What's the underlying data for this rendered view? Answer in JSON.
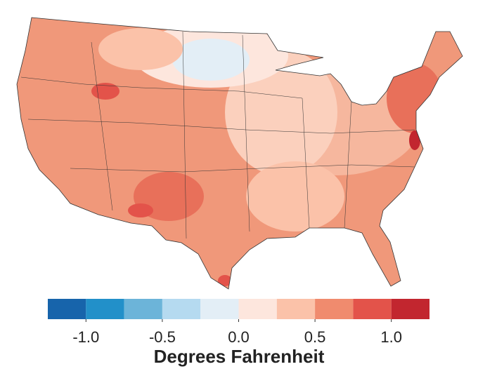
{
  "legend": {
    "title": "Degrees Fahrenheit",
    "bins": [
      -1.25,
      -1,
      -0.75,
      -0.5,
      -0.25,
      0,
      0.25,
      0.5,
      0.75,
      1,
      1.25
    ],
    "colors": [
      "#1764ab",
      "#2290c9",
      "#6cb4d9",
      "#b5daf0",
      "#e3eef6",
      "#fde6dd",
      "#fbc2a9",
      "#f08b6e",
      "#e3534a",
      "#c2262f"
    ],
    "ticks": [
      {
        "value": -1,
        "label": "-1.0"
      },
      {
        "value": -0.5,
        "label": "-0.5"
      },
      {
        "value": 0,
        "label": "0.0"
      },
      {
        "value": 0.5,
        "label": "0.5"
      },
      {
        "value": 1,
        "label": "1.0"
      }
    ]
  }
}
